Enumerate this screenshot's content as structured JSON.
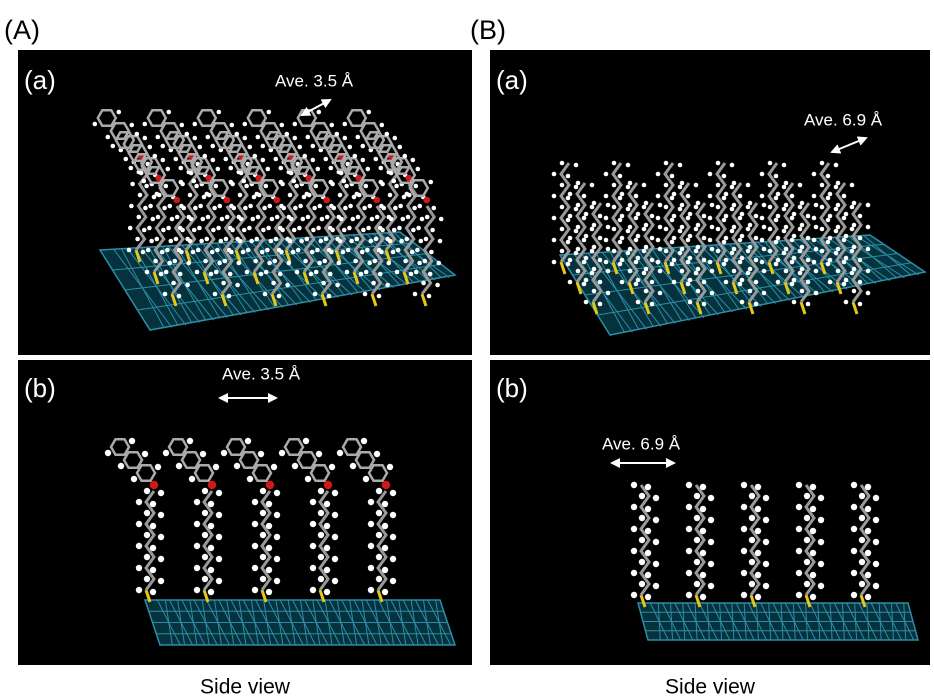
{
  "panels": [
    {
      "label": "(A)",
      "subpanels": [
        {
          "label": "(a)",
          "annotation": "Ave. 3.5 Å"
        },
        {
          "label": "(b)",
          "annotation": "Ave. 3.5 Å"
        }
      ],
      "caption": "Side view"
    },
    {
      "label": "(B)",
      "subpanels": [
        {
          "label": "(a)",
          "annotation": "Ave. 6.9 Å"
        },
        {
          "label": "(b)",
          "annotation": "Ave. 6.9 Å"
        }
      ],
      "caption": "Side view"
    }
  ]
}
